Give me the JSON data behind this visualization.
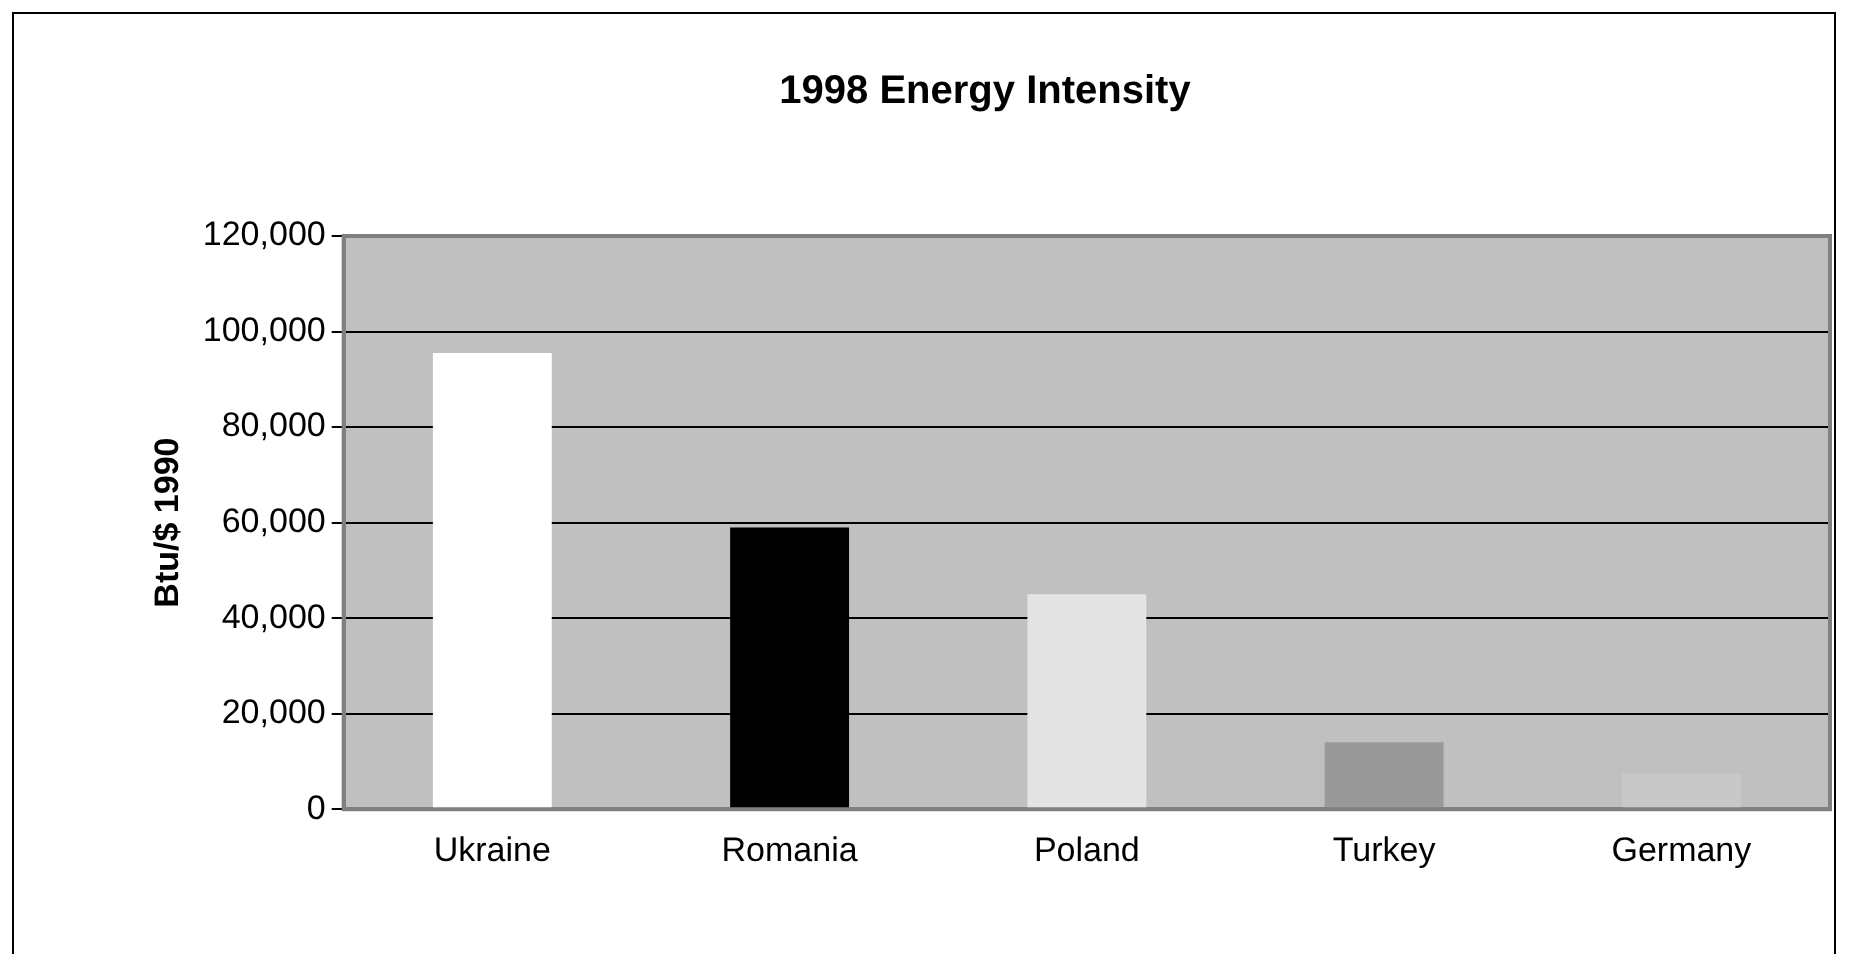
{
  "chart_data": {
    "type": "bar",
    "title": "1998 Energy Intensity",
    "ylabel": "Btu/$ 1990",
    "categories": [
      "Ukraine",
      "Romania",
      "Poland",
      "Turkey",
      "Germany"
    ],
    "values": [
      95500,
      59000,
      45000,
      14000,
      7500
    ],
    "colors": [
      "#ffffff",
      "#000000",
      "#e4e4e4",
      "#999999",
      "#c8c8c8"
    ],
    "ylim": [
      0,
      120000
    ],
    "yticks": [
      0,
      {
        "value": 20000,
        "label": "20,000"
      },
      {
        "value": 40000,
        "label": "40,000"
      },
      {
        "value": 60000,
        "label": "60,000"
      },
      {
        "value": 80000,
        "label": "80,000"
      },
      {
        "value": 100000,
        "label": "100,000"
      },
      {
        "value": 120000,
        "label": "120,000"
      }
    ],
    "grid": "y",
    "legend": false
  }
}
